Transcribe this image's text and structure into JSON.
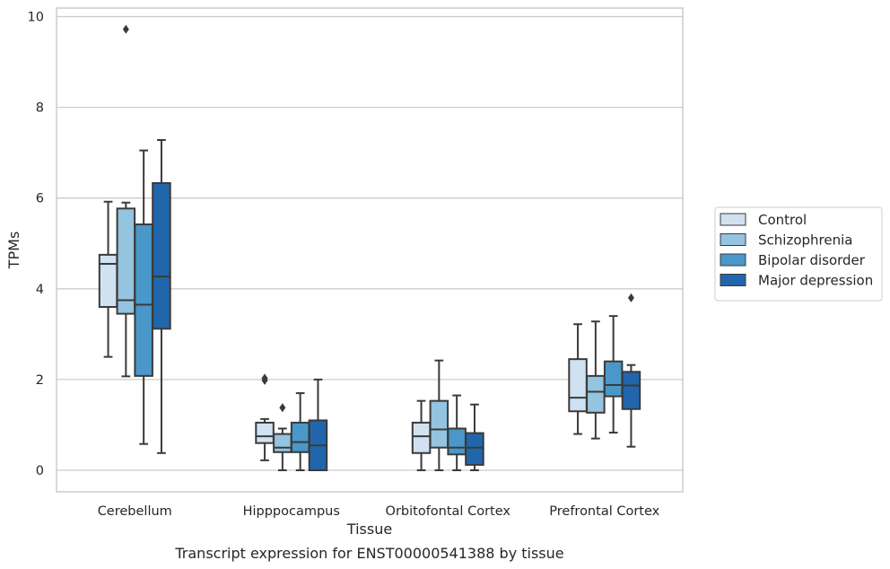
{
  "chart_data": {
    "type": "box",
    "caption": "Transcript expression for ENST00000541388 by tissue",
    "xlabel": "Tissue",
    "ylabel": "TPMs",
    "ylim": [
      -0.45,
      10.2
    ],
    "yticks": [
      0,
      2,
      4,
      6,
      8,
      10
    ],
    "grid": true,
    "legend_position": "right",
    "categories": [
      "Cerebellum",
      "Hipppocampus",
      "Orbitofontal Cortex",
      "Prefrontal Cortex"
    ],
    "series": [
      {
        "name": "Control",
        "color": "#d0e1f2",
        "boxes": [
          {
            "whislo": 2.5,
            "q1": 3.6,
            "med": 4.55,
            "q3": 4.75,
            "whishi": 5.92,
            "fliers": []
          },
          {
            "whislo": 0.22,
            "q1": 0.6,
            "med": 0.75,
            "q3": 1.05,
            "whishi": 1.13,
            "fliers": [
              1.98,
              2.03
            ]
          },
          {
            "whislo": 0.0,
            "q1": 0.38,
            "med": 0.75,
            "q3": 1.05,
            "whishi": 1.53,
            "fliers": []
          },
          {
            "whislo": 0.8,
            "q1": 1.3,
            "med": 1.6,
            "q3": 2.45,
            "whishi": 3.22,
            "fliers": []
          }
        ]
      },
      {
        "name": "Schizophrenia",
        "color": "#94c4df",
        "boxes": [
          {
            "whislo": 2.07,
            "q1": 3.45,
            "med": 3.75,
            "q3": 5.77,
            "whishi": 5.9,
            "fliers": [
              9.72
            ]
          },
          {
            "whislo": 0.0,
            "q1": 0.4,
            "med": 0.5,
            "q3": 0.8,
            "whishi": 0.92,
            "fliers": [
              1.38
            ]
          },
          {
            "whislo": 0.0,
            "q1": 0.5,
            "med": 0.9,
            "q3": 1.53,
            "whishi": 2.42,
            "fliers": []
          },
          {
            "whislo": 0.7,
            "q1": 1.27,
            "med": 1.73,
            "q3": 2.08,
            "whishi": 3.28,
            "fliers": []
          }
        ]
      },
      {
        "name": "Bipolar disorder",
        "color": "#4a98c9",
        "boxes": [
          {
            "whislo": 0.58,
            "q1": 2.08,
            "med": 3.65,
            "q3": 5.42,
            "whishi": 7.05,
            "fliers": []
          },
          {
            "whislo": 0.0,
            "q1": 0.4,
            "med": 0.62,
            "q3": 1.05,
            "whishi": 1.7,
            "fliers": []
          },
          {
            "whislo": 0.0,
            "q1": 0.35,
            "med": 0.5,
            "q3": 0.92,
            "whishi": 1.65,
            "fliers": []
          },
          {
            "whislo": 0.83,
            "q1": 1.63,
            "med": 1.88,
            "q3": 2.4,
            "whishi": 3.4,
            "fliers": []
          }
        ]
      },
      {
        "name": "Major depression",
        "color": "#2166ac",
        "boxes": [
          {
            "whislo": 0.38,
            "q1": 3.12,
            "med": 4.27,
            "q3": 6.33,
            "whishi": 7.28,
            "fliers": []
          },
          {
            "whislo": 0.0,
            "q1": 0.0,
            "med": 0.55,
            "q3": 1.1,
            "whishi": 2.0,
            "fliers": []
          },
          {
            "whislo": 0.0,
            "q1": 0.12,
            "med": 0.5,
            "q3": 0.82,
            "whishi": 1.45,
            "fliers": []
          },
          {
            "whislo": 0.52,
            "q1": 1.35,
            "med": 1.87,
            "q3": 2.17,
            "whishi": 2.32,
            "fliers": [
              3.8
            ]
          }
        ]
      }
    ]
  }
}
